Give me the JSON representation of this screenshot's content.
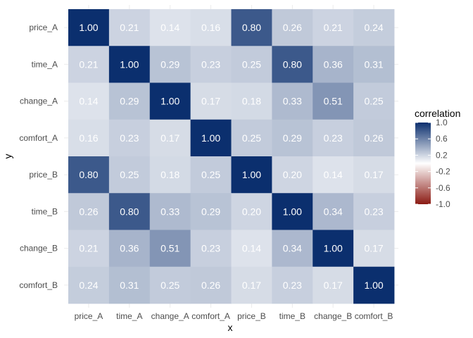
{
  "chart_data": {
    "type": "heatmap",
    "xlabel": "x",
    "ylabel": "y",
    "x_categories": [
      "price_A",
      "time_A",
      "change_A",
      "comfort_A",
      "price_B",
      "time_B",
      "change_B",
      "comfort_B"
    ],
    "y_categories": [
      "price_A",
      "time_A",
      "change_A",
      "comfort_A",
      "price_B",
      "time_B",
      "change_B",
      "comfort_B"
    ],
    "values": [
      [
        1.0,
        0.21,
        0.14,
        0.16,
        0.8,
        0.26,
        0.21,
        0.24
      ],
      [
        0.21,
        1.0,
        0.29,
        0.23,
        0.25,
        0.8,
        0.36,
        0.31
      ],
      [
        0.14,
        0.29,
        1.0,
        0.17,
        0.18,
        0.33,
        0.51,
        0.25
      ],
      [
        0.16,
        0.23,
        0.17,
        1.0,
        0.25,
        0.29,
        0.23,
        0.26
      ],
      [
        0.8,
        0.25,
        0.18,
        0.25,
        1.0,
        0.2,
        0.14,
        0.17
      ],
      [
        0.26,
        0.8,
        0.33,
        0.29,
        0.2,
        1.0,
        0.34,
        0.23
      ],
      [
        0.21,
        0.36,
        0.51,
        0.23,
        0.14,
        0.34,
        1.0,
        0.17
      ],
      [
        0.24,
        0.31,
        0.25,
        0.26,
        0.17,
        0.23,
        0.17,
        1.0
      ]
    ],
    "cell_labels": [
      [
        "1.00",
        "0.21",
        "0.14",
        "0.16",
        "0.80",
        "0.26",
        "0.21",
        "0.24"
      ],
      [
        "0.21",
        "1.00",
        "0.29",
        "0.23",
        "0.25",
        "0.80",
        "0.36",
        "0.31"
      ],
      [
        "0.14",
        "0.29",
        "1.00",
        "0.17",
        "0.18",
        "0.33",
        "0.51",
        "0.25"
      ],
      [
        "0.16",
        "0.23",
        "0.17",
        "1.00",
        "0.25",
        "0.29",
        "0.23",
        "0.26"
      ],
      [
        "0.80",
        "0.25",
        "0.18",
        "0.25",
        "1.00",
        "0.20",
        "0.14",
        "0.17"
      ],
      [
        "0.26",
        "0.80",
        "0.33",
        "0.29",
        "0.20",
        "1.00",
        "0.34",
        "0.23"
      ],
      [
        "0.21",
        "0.36",
        "0.51",
        "0.23",
        "0.14",
        "0.34",
        "1.00",
        "0.17"
      ],
      [
        "0.24",
        "0.31",
        "0.25",
        "0.26",
        "0.17",
        "0.23",
        "0.17",
        "1.00"
      ]
    ],
    "legend": {
      "title": "correlation",
      "placement": "right",
      "range": [
        -1.0,
        1.0
      ],
      "ticks": [
        1.0,
        0.6,
        0.2,
        -0.2,
        -0.6,
        -1.0
      ],
      "tick_labels": [
        "1.0",
        "0.6",
        "0.2",
        "-0.2",
        "-0.6",
        "-1.0"
      ]
    },
    "colors": {
      "high": "#0b2f6e",
      "mid": "#ffffff",
      "low": "#8b1a13",
      "cell_text": "#ffffff",
      "axis_text": "#4d4d4d",
      "axis_title": "#000000",
      "gridline": "#ebebeb"
    },
    "grid": true
  }
}
